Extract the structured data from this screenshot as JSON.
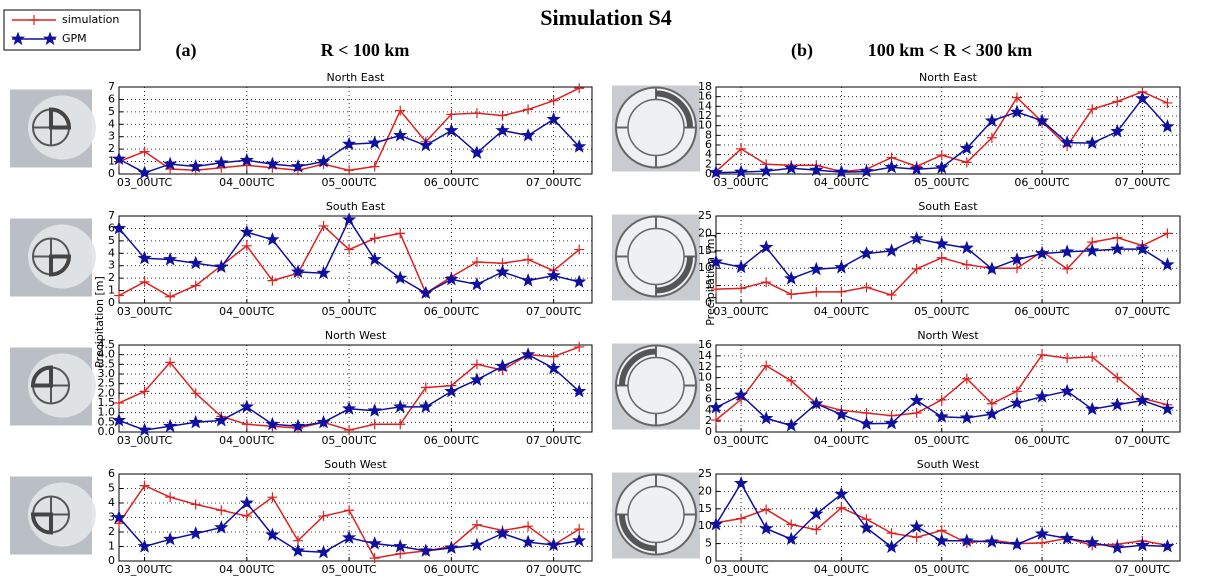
{
  "title": "Simulation S4",
  "panels": [
    {
      "label": "(a)",
      "heading": "R < 100 km",
      "ylabel": "Precipitation [m]"
    },
    {
      "label": "(b)",
      "heading": "100 km < R < 300 km",
      "ylabel": "Precipitation [m]"
    }
  ],
  "chart_data": [
    {
      "type": "line",
      "title": "North East",
      "grid": true,
      "categories": [
        null,
        "03_00UTC",
        null,
        null,
        null,
        "04_00UTC",
        null,
        null,
        null,
        "05_00UTC",
        null,
        null,
        null,
        "06_00UTC",
        null,
        null,
        null,
        "07_00UTC",
        null
      ],
      "ylim": [
        0,
        7
      ],
      "yticks": [
        0,
        1,
        2,
        3,
        4,
        5,
        6,
        7
      ],
      "series": [
        {
          "name": "simulation",
          "color": "#e02020",
          "marker": "plus",
          "values": [
            1.0,
            1.8,
            0.4,
            0.3,
            0.5,
            0.7,
            0.5,
            0.3,
            0.8,
            0.3,
            0.6,
            5.1,
            2.6,
            4.8,
            4.9,
            4.7,
            5.2,
            5.9,
            6.9
          ]
        },
        {
          "name": "GPM",
          "color": "#1010a0",
          "marker": "star",
          "values": [
            1.2,
            0.1,
            0.8,
            0.6,
            0.9,
            1.1,
            0.8,
            0.6,
            1.0,
            2.4,
            2.5,
            3.1,
            2.3,
            3.5,
            1.7,
            3.5,
            3.1,
            4.4,
            2.2
          ]
        }
      ]
    },
    {
      "type": "line",
      "title": "South East",
      "grid": true,
      "categories": [
        null,
        "03_00UTC",
        null,
        null,
        null,
        "04_00UTC",
        null,
        null,
        null,
        "05_00UTC",
        null,
        null,
        null,
        "06_00UTC",
        null,
        null,
        null,
        "07_00UTC",
        null
      ],
      "ylim": [
        0,
        7
      ],
      "yticks": [
        0,
        1,
        2,
        3,
        4,
        5,
        6,
        7
      ],
      "series": [
        {
          "name": "simulation",
          "color": "#e02020",
          "marker": "plus",
          "values": [
            0.6,
            1.7,
            0.5,
            1.4,
            3.0,
            4.6,
            1.8,
            2.4,
            6.2,
            4.3,
            5.2,
            5.6,
            0.8,
            2.1,
            3.3,
            3.2,
            3.5,
            2.6,
            4.3
          ]
        },
        {
          "name": "GPM",
          "color": "#1010a0",
          "marker": "star",
          "values": [
            6.0,
            3.6,
            3.5,
            3.2,
            2.9,
            5.7,
            5.1,
            2.5,
            2.4,
            6.7,
            3.5,
            2.0,
            0.8,
            1.9,
            1.5,
            2.5,
            1.8,
            2.2,
            1.7
          ]
        }
      ]
    },
    {
      "type": "line",
      "title": "North West",
      "grid": true,
      "categories": [
        null,
        "03_00UTC",
        null,
        null,
        null,
        "04_00UTC",
        null,
        null,
        null,
        "05_00UTC",
        null,
        null,
        null,
        "06_00UTC",
        null,
        null,
        null,
        "07_00UTC",
        null
      ],
      "ylim": [
        0,
        4.5
      ],
      "yticks": [
        {
          "value": 0,
          "label": "0.0"
        },
        0.5,
        {
          "value": 1,
          "label": "1.0"
        },
        1.5,
        {
          "value": 2,
          "label": "2.0"
        },
        2.5,
        {
          "value": 3,
          "label": "3.0"
        },
        3.5,
        {
          "value": 4,
          "label": "4.0"
        },
        4.5
      ],
      "series": [
        {
          "name": "simulation",
          "color": "#e02020",
          "marker": "plus",
          "values": [
            1.5,
            2.1,
            3.6,
            2.0,
            0.8,
            0.4,
            0.3,
            0.2,
            0.5,
            0.1,
            0.4,
            0.4,
            2.3,
            2.4,
            3.5,
            3.2,
            4.0,
            3.9,
            4.4
          ]
        },
        {
          "name": "GPM",
          "color": "#1010a0",
          "marker": "star",
          "values": [
            0.6,
            0.1,
            0.3,
            0.5,
            0.6,
            1.3,
            0.4,
            0.3,
            0.5,
            1.2,
            1.1,
            1.3,
            1.3,
            2.1,
            2.7,
            3.4,
            4.0,
            3.3,
            2.1
          ]
        }
      ]
    },
    {
      "type": "line",
      "title": "South West",
      "grid": true,
      "categories": [
        null,
        "03_00UTC",
        null,
        null,
        null,
        "04_00UTC",
        null,
        null,
        null,
        "05_00UTC",
        null,
        null,
        null,
        "06_00UTC",
        null,
        null,
        null,
        "07_00UTC",
        null
      ],
      "ylim": [
        0,
        6
      ],
      "yticks": [
        0,
        1,
        2,
        3,
        4,
        5,
        6
      ],
      "series": [
        {
          "name": "simulation",
          "color": "#e02020",
          "marker": "plus",
          "values": [
            2.6,
            5.2,
            4.4,
            3.9,
            3.5,
            3.1,
            4.4,
            1.4,
            3.1,
            3.5,
            0.2,
            0.5,
            0.7,
            1.0,
            2.5,
            2.1,
            2.4,
            1.1,
            2.2
          ]
        },
        {
          "name": "GPM",
          "color": "#1010a0",
          "marker": "star",
          "values": [
            3.0,
            1.0,
            1.5,
            1.9,
            2.3,
            4.0,
            1.8,
            0.7,
            0.6,
            1.6,
            1.2,
            1.0,
            0.7,
            0.9,
            1.1,
            1.9,
            1.3,
            1.1,
            1.4
          ]
        }
      ]
    },
    {
      "type": "line",
      "title": "North East",
      "grid": true,
      "categories": [
        null,
        "03_00UTC",
        null,
        null,
        null,
        "04_00UTC",
        null,
        null,
        null,
        "05_00UTC",
        null,
        null,
        null,
        "06_00UTC",
        null,
        null,
        null,
        "07_00UTC",
        null
      ],
      "ylim": [
        0,
        18
      ],
      "yticks": [
        0,
        2,
        4,
        6,
        8,
        10,
        12,
        14,
        16,
        18
      ],
      "series": [
        {
          "name": "simulation",
          "color": "#e02020",
          "marker": "plus",
          "values": [
            0.5,
            5.2,
            2.0,
            1.8,
            1.8,
            0.5,
            1.0,
            3.4,
            1.6,
            3.9,
            2.4,
            7.5,
            15.8,
            10.8,
            5.8,
            13.4,
            15.0,
            17.0,
            14.7
          ]
        },
        {
          "name": "GPM",
          "color": "#1010a0",
          "marker": "star",
          "values": [
            0.3,
            0.4,
            0.6,
            1.2,
            0.8,
            0.4,
            0.5,
            1.4,
            1.0,
            1.3,
            5.3,
            11.0,
            12.8,
            11.0,
            6.5,
            6.4,
            8.8,
            15.6,
            9.8
          ]
        }
      ]
    },
    {
      "type": "line",
      "title": "South East",
      "grid": true,
      "categories": [
        null,
        "03_00UTC",
        null,
        null,
        null,
        "04_00UTC",
        null,
        null,
        null,
        "05_00UTC",
        null,
        null,
        null,
        "06_00UTC",
        null,
        null,
        null,
        "07_00UTC",
        null
      ],
      "ylim": [
        0,
        25
      ],
      "yticks": [
        0,
        5,
        10,
        15,
        20,
        25
      ],
      "series": [
        {
          "name": "simulation",
          "color": "#e02020",
          "marker": "plus",
          "values": [
            4.0,
            4.2,
            6.0,
            2.5,
            3.2,
            3.2,
            4.5,
            2.3,
            9.8,
            13.0,
            11.0,
            10.0,
            10.0,
            14.8,
            9.8,
            17.5,
            18.8,
            16.5,
            20.0
          ]
        },
        {
          "name": "GPM",
          "color": "#1010a0",
          "marker": "star",
          "values": [
            11.8,
            10.3,
            16.0,
            7.0,
            9.7,
            10.2,
            14.2,
            15.0,
            18.5,
            17.0,
            15.8,
            9.8,
            12.5,
            14.2,
            14.7,
            15.0,
            15.5,
            15.5,
            11.0
          ]
        }
      ]
    },
    {
      "type": "line",
      "title": "North West",
      "grid": true,
      "categories": [
        null,
        "03_00UTC",
        null,
        null,
        null,
        "04_00UTC",
        null,
        null,
        null,
        "05_00UTC",
        null,
        null,
        null,
        "06_00UTC",
        null,
        null,
        null,
        "07_00UTC",
        null
      ],
      "ylim": [
        0,
        16
      ],
      "yticks": [
        0,
        2,
        4,
        6,
        8,
        10,
        12,
        14,
        16
      ],
      "series": [
        {
          "name": "simulation",
          "color": "#e02020",
          "marker": "plus",
          "values": [
            2.2,
            6.0,
            12.2,
            9.4,
            5.2,
            4.0,
            3.5,
            3.0,
            3.5,
            5.9,
            9.8,
            5.2,
            7.5,
            14.2,
            13.6,
            13.8,
            10.0,
            6.2,
            5.0
          ]
        },
        {
          "name": "GPM",
          "color": "#1010a0",
          "marker": "star",
          "values": [
            4.5,
            6.8,
            2.5,
            1.2,
            5.2,
            3.2,
            1.5,
            1.6,
            5.8,
            2.8,
            2.6,
            3.3,
            5.3,
            6.5,
            7.5,
            4.2,
            5.0,
            5.8,
            4.2
          ]
        }
      ]
    },
    {
      "type": "line",
      "title": "South West",
      "grid": true,
      "categories": [
        null,
        "03_00UTC",
        null,
        null,
        null,
        "04_00UTC",
        null,
        null,
        null,
        "05_00UTC",
        null,
        null,
        null,
        "06_00UTC",
        null,
        null,
        null,
        "07_00UTC",
        null
      ],
      "ylim": [
        0,
        25
      ],
      "yticks": [
        0,
        5,
        10,
        15,
        20,
        25
      ],
      "series": [
        {
          "name": "simulation",
          "color": "#e02020",
          "marker": "plus",
          "values": [
            11.0,
            12.2,
            14.8,
            10.5,
            9.0,
            15.3,
            12.0,
            8.0,
            6.8,
            8.8,
            5.2,
            6.0,
            5.0,
            5.2,
            6.5,
            4.5,
            4.8,
            5.8,
            4.5
          ]
        },
        {
          "name": "GPM",
          "color": "#1010a0",
          "marker": "star",
          "values": [
            10.5,
            22.3,
            9.3,
            6.3,
            13.5,
            19.2,
            9.5,
            4.0,
            9.8,
            5.8,
            5.8,
            5.5,
            4.8,
            7.8,
            6.5,
            5.3,
            3.8,
            4.5,
            4.2
          ]
        }
      ]
    }
  ]
}
